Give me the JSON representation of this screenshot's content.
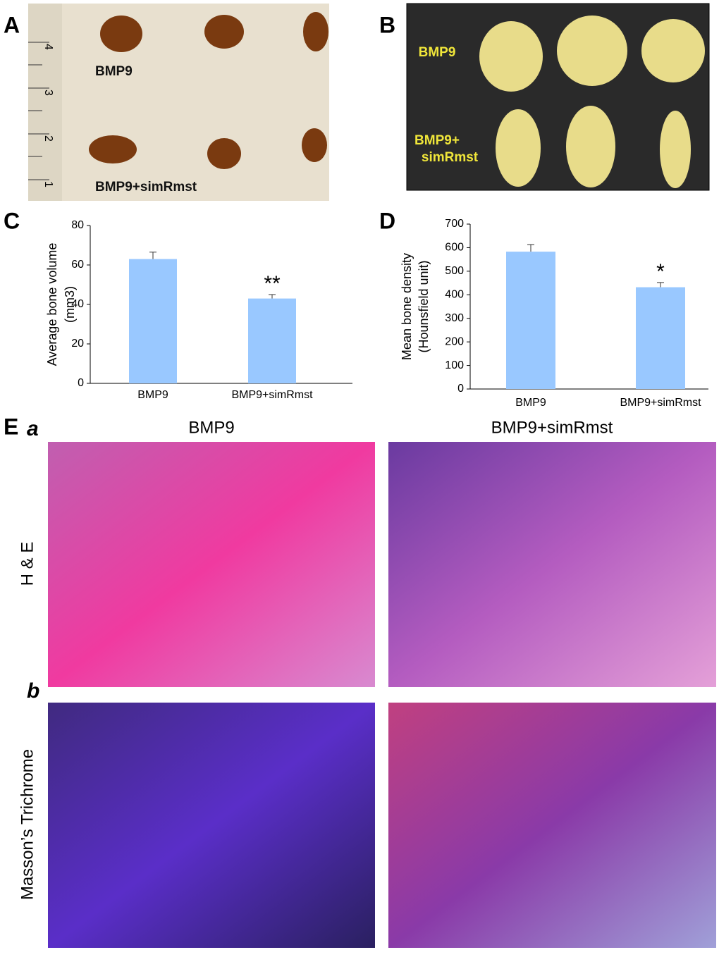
{
  "panel_labels": [
    "A",
    "B",
    "C",
    "D",
    "E"
  ],
  "panel_a": {
    "groups": [
      "BMP9",
      "BMP9+simRmst"
    ],
    "ruler_labels": [
      "4",
      "3",
      "2",
      "1"
    ]
  },
  "panel_b": {
    "groups": [
      "BMP9",
      "BMP9+",
      "simRmst"
    ]
  },
  "panel_e": {
    "row_labels": [
      "a",
      "b"
    ],
    "columns": [
      "BMP9",
      "BMP9+simRmst"
    ],
    "rows": [
      "H & E",
      "Masson’s Trichrome"
    ]
  },
  "chart_data": [
    {
      "type": "bar",
      "y_label": [
        "Average bone volume",
        "(mm3)"
      ],
      "categories": [
        "BMP9",
        "BMP9+simRmst"
      ],
      "values": [
        63,
        43
      ],
      "errors": [
        3.5,
        2
      ],
      "significance": [
        null,
        "**"
      ],
      "color": "#99c8ff",
      "ylim": [
        0,
        80
      ],
      "yticks": [
        0,
        20,
        40,
        60,
        80
      ]
    },
    {
      "type": "bar",
      "y_label": [
        "Mean bone density",
        "(Hounsfield unit)"
      ],
      "categories": [
        "BMP9",
        "BMP9+simRmst"
      ],
      "values": [
        583,
        432
      ],
      "errors": [
        30,
        20
      ],
      "significance": [
        null,
        "*"
      ],
      "color": "#99c8ff",
      "ylim": [
        0,
        700
      ],
      "yticks": [
        0,
        100,
        200,
        300,
        400,
        500,
        600,
        700
      ]
    }
  ]
}
